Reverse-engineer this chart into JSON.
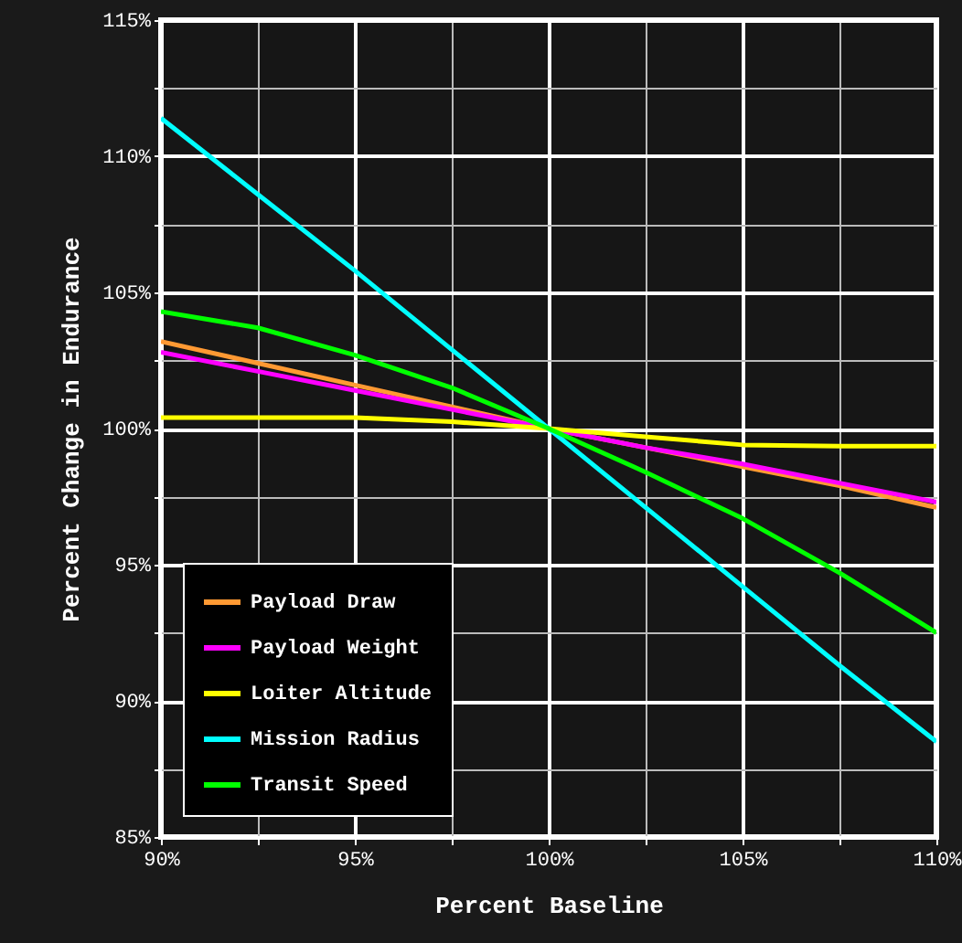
{
  "chart_data": {
    "type": "line",
    "xlabel": "Percent Baseline",
    "ylabel": "Percent Change in Endurance",
    "x": [
      90,
      92.5,
      95,
      97.5,
      100,
      102.5,
      105,
      107.5,
      110
    ],
    "series": [
      {
        "name": "Payload Draw",
        "color": "#ff9933",
        "values": [
          103.2,
          102.4,
          101.6,
          100.8,
          100,
          99.3,
          98.6,
          97.9,
          97.1
        ]
      },
      {
        "name": "Payload Weight",
        "color": "#ff00ff",
        "values": [
          102.8,
          102.1,
          101.4,
          100.7,
          100,
          99.3,
          98.7,
          98.0,
          97.3
        ]
      },
      {
        "name": "Loiter Altitude",
        "color": "#ffff00",
        "values": [
          100.4,
          100.4,
          100.4,
          100.25,
          100,
          99.7,
          99.4,
          99.35,
          99.35
        ]
      },
      {
        "name": "Mission Radius",
        "color": "#00ffff",
        "values": [
          111.4,
          108.6,
          105.8,
          102.9,
          100,
          97.1,
          94.2,
          91.3,
          88.5
        ]
      },
      {
        "name": "Transit Speed",
        "color": "#00ff00",
        "values": [
          104.3,
          103.7,
          102.7,
          101.5,
          100,
          98.4,
          96.7,
          94.7,
          92.5
        ]
      }
    ],
    "xlim": [
      90,
      110
    ],
    "xticks": [
      {
        "value": 90,
        "label": "90%"
      },
      {
        "value": 92.5,
        "label": null
      },
      {
        "value": 95,
        "label": "95%"
      },
      {
        "value": 97.5,
        "label": null
      },
      {
        "value": 100,
        "label": "100%"
      },
      {
        "value": 102.5,
        "label": null
      },
      {
        "value": 105,
        "label": "105%"
      },
      {
        "value": 107.5,
        "label": null
      },
      {
        "value": 110,
        "label": "110%"
      }
    ],
    "ylim": [
      85,
      115
    ],
    "yticks": [
      {
        "value": 85,
        "label": "85%"
      },
      {
        "value": 87.5,
        "label": null
      },
      {
        "value": 90,
        "label": "90%"
      },
      {
        "value": 92.5,
        "label": null
      },
      {
        "value": 95,
        "label": "95%"
      },
      {
        "value": 97.5,
        "label": null
      },
      {
        "value": 100,
        "label": "100%"
      },
      {
        "value": 102.5,
        "label": null
      },
      {
        "value": 105,
        "label": "105%"
      },
      {
        "value": 107.5,
        "label": null
      },
      {
        "value": 110,
        "label": "110%"
      },
      {
        "value": 112.5,
        "label": null
      },
      {
        "value": 115,
        "label": "115%"
      }
    ],
    "grid": true,
    "legend": "bottom left",
    "marker": "none",
    "line_style": "solid"
  }
}
